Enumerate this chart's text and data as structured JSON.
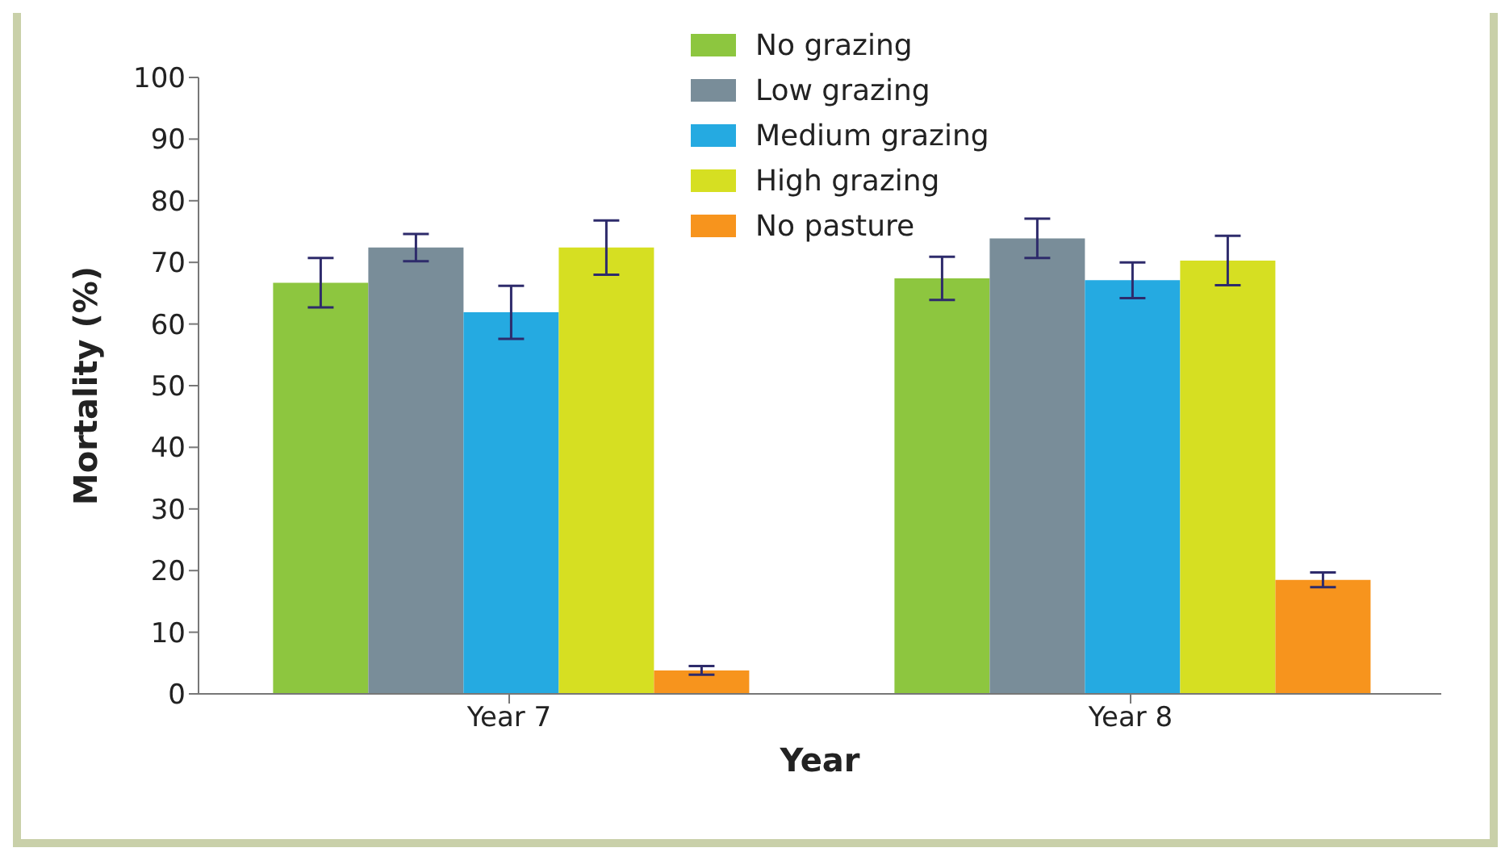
{
  "chart_data": {
    "type": "bar",
    "xlabel": "Year",
    "ylabel": "Mortality (%)",
    "categories": [
      "Year 7",
      "Year 8"
    ],
    "series": [
      {
        "name": "No grazing",
        "color": "#8dc63f",
        "values": [
          66.7,
          67.4
        ],
        "errors": [
          4,
          3.5
        ]
      },
      {
        "name": "Low grazing",
        "color": "#798d99",
        "values": [
          72.4,
          73.9
        ],
        "errors": [
          2.2,
          3.2
        ]
      },
      {
        "name": "Medium grazing",
        "color": "#25aae1",
        "values": [
          61.9,
          67.1
        ],
        "errors": [
          4.3,
          2.9
        ]
      },
      {
        "name": "High grazing",
        "color": "#d6df22",
        "values": [
          72.4,
          70.3
        ],
        "errors": [
          4.4,
          4
        ]
      },
      {
        "name": "No pasture",
        "color": "#f7941d",
        "values": [
          3.8,
          18.5
        ],
        "errors": [
          0.7,
          1.2
        ]
      }
    ],
    "ylim": [
      0,
      100
    ],
    "yticks": [
      0,
      10,
      20,
      30,
      40,
      50,
      60,
      70,
      80,
      90,
      100
    ],
    "legend": "top"
  }
}
